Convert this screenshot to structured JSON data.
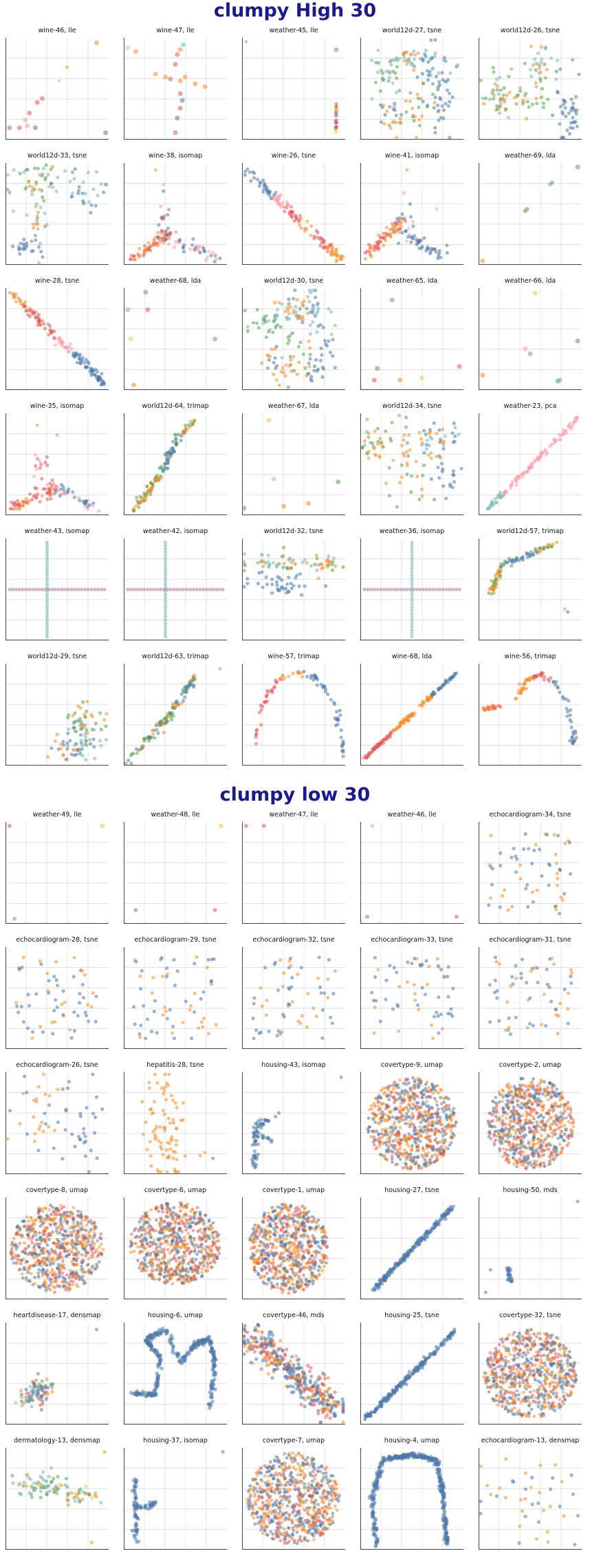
{
  "colors": {
    "title": "#1a1a8a",
    "blue": "#4e79a7",
    "orange": "#f28e2b",
    "red": "#e15759",
    "teal": "#76b7b2",
    "green": "#59a14f",
    "yellow": "#edc948",
    "purple": "#b07aa1",
    "pink": "#ff9da7",
    "grid": "#d0d0d0",
    "axis": "#444444"
  },
  "sections": [
    {
      "title": "clumpy High 30",
      "panels": [
        {
          "title": "wine-46, lle"
        },
        {
          "title": "wine-47, lle"
        },
        {
          "title": "weather-45, lle"
        },
        {
          "title": "world12d-27, tsne"
        },
        {
          "title": "world12d-26, tsne"
        },
        {
          "title": "world12d-33, tsne"
        },
        {
          "title": "wine-38, isomap"
        },
        {
          "title": "wine-26, tsne"
        },
        {
          "title": "wine-41, isomap"
        },
        {
          "title": "weather-69, lda"
        },
        {
          "title": "wine-28, tsne"
        },
        {
          "title": "weather-68, lda"
        },
        {
          "title": "world12d-30, tsne"
        },
        {
          "title": "weather-65, lda"
        },
        {
          "title": "weather-66, lda"
        },
        {
          "title": "wine-35, isomap"
        },
        {
          "title": "world12d-64, trimap"
        },
        {
          "title": "weather-67, lda"
        },
        {
          "title": "world12d-34, tsne"
        },
        {
          "title": "weather-23, pca"
        },
        {
          "title": "weather-43, isomap"
        },
        {
          "title": "weather-42, isomap"
        },
        {
          "title": "world12d-32, tsne"
        },
        {
          "title": "weather-36, isomap"
        },
        {
          "title": "world12d-57, trimap"
        },
        {
          "title": "world12d-29, tsne"
        },
        {
          "title": "world12d-63, trimap"
        },
        {
          "title": "wine-57, trimap"
        },
        {
          "title": "wine-68, lda"
        },
        {
          "title": "wine-56, trimap"
        }
      ]
    },
    {
      "title": "clumpy low 30",
      "panels": [
        {
          "title": "weather-49, lle"
        },
        {
          "title": "weather-48, lle"
        },
        {
          "title": "weather-47, lle"
        },
        {
          "title": "weather-46, lle"
        },
        {
          "title": "echocardiogram-34, tsne"
        },
        {
          "title": "echocardiogram-28, tsne"
        },
        {
          "title": "echocardiogram-29, tsne"
        },
        {
          "title": "echocardiogram-32, tsne"
        },
        {
          "title": "echocardiogram-33, tsne"
        },
        {
          "title": "echocardiogram-31, tsne"
        },
        {
          "title": "echocardiogram-26, tsne"
        },
        {
          "title": "hepatitis-28, tsne"
        },
        {
          "title": "housing-43, isomap"
        },
        {
          "title": "covertype-9, umap"
        },
        {
          "title": "covertype-2, umap"
        },
        {
          "title": "covertype-8, umap"
        },
        {
          "title": "covertype-6, umap"
        },
        {
          "title": "covertype-1, umap"
        },
        {
          "title": "housing-27, tsne"
        },
        {
          "title": "housing-50, mds"
        },
        {
          "title": "heartdisease-17, densmap"
        },
        {
          "title": "housing-6, umap"
        },
        {
          "title": "covertype-46, mds"
        },
        {
          "title": "housing-25, tsne"
        },
        {
          "title": "covertype-32, tsne"
        },
        {
          "title": "dermatology-13, densmap"
        },
        {
          "title": "housing-37, isomap"
        },
        {
          "title": "covertype-7, umap"
        },
        {
          "title": "housing-4, umap"
        },
        {
          "title": "echocardiogram-13, densmap"
        }
      ]
    }
  ],
  "chart_data": {
    "type": "scatter",
    "description_grid": "5 columns x 6 rows of small-multiple scatter plots per section",
    "grid": true,
    "axes_ticks_labeled": false
  }
}
